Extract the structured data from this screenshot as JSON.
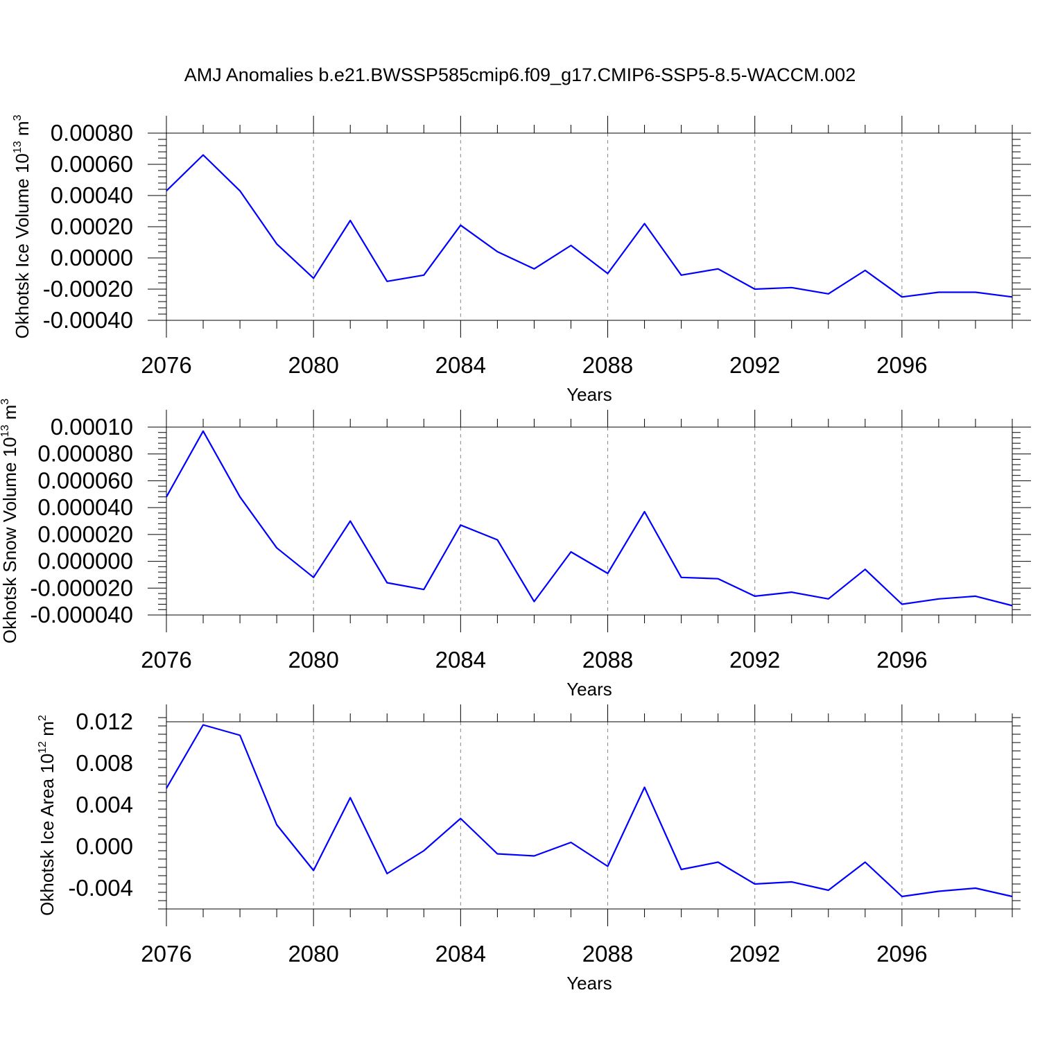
{
  "chart_data": {
    "title": "AMJ Anomalies b.e21.BWSSP585cmip6.f09_g17.CMIP6-SSP5-8.5-WACCM.002",
    "panels": [
      {
        "type": "line",
        "ylabel": "Okhotsk Ice Volume 10",
        "ylabel_exp": "13",
        "ylabel_unit": "m",
        "ylabel_unit_exp": "3",
        "xlabel": "Years",
        "xlim": [
          2076,
          2099
        ],
        "ylim": [
          -0.0004,
          0.0008
        ],
        "yticks": [
          "0.00080",
          "0.00060",
          "0.00040",
          "0.00020",
          "0.00000",
          "-0.00020",
          "-0.00040"
        ],
        "ytick_values": [
          0.0008,
          0.0006,
          0.0004,
          0.0002,
          0.0,
          -0.0002,
          -0.0004
        ],
        "xticks": [
          "2076",
          "2080",
          "2084",
          "2088",
          "2092",
          "2096"
        ],
        "xtick_values": [
          2076,
          2080,
          2084,
          2088,
          2092,
          2096
        ],
        "grid": "x-dashed",
        "series": [
          {
            "color": "#0000ff",
            "x": [
              2076,
              2077,
              2078,
              2079,
              2080,
              2081,
              2082,
              2083,
              2084,
              2085,
              2086,
              2087,
              2088,
              2089,
              2090,
              2091,
              2092,
              2093,
              2094,
              2095,
              2096,
              2097,
              2098,
              2099
            ],
            "values": [
              0.00043,
              0.00066,
              0.00043,
              9e-05,
              -0.00013,
              0.00024,
              -0.00015,
              -0.00011,
              0.00021,
              4e-05,
              -7e-05,
              8e-05,
              -0.0001,
              0.00022,
              -0.00011,
              -7e-05,
              -0.0002,
              -0.00019,
              -0.00023,
              -8e-05,
              -0.00025,
              -0.00022,
              -0.00022,
              -0.00025
            ]
          }
        ]
      },
      {
        "type": "line",
        "ylabel": "Okhotsk Snow Volume 10",
        "ylabel_exp": "13",
        "ylabel_unit": "m",
        "ylabel_unit_exp": "3",
        "xlabel": "Years",
        "xlim": [
          2076,
          2099
        ],
        "ylim": [
          -4e-05,
          0.0001
        ],
        "yticks": [
          "0.00010",
          "0.000080",
          "0.000060",
          "0.000040",
          "0.000020",
          "0.000000",
          "-0.000020",
          "-0.000040"
        ],
        "ytick_values": [
          0.0001,
          8e-05,
          6e-05,
          4e-05,
          2e-05,
          0.0,
          -2e-05,
          -4e-05
        ],
        "xticks": [
          "2076",
          "2080",
          "2084",
          "2088",
          "2092",
          "2096"
        ],
        "xtick_values": [
          2076,
          2080,
          2084,
          2088,
          2092,
          2096
        ],
        "grid": "x-dashed",
        "series": [
          {
            "color": "#0000ff",
            "x": [
              2076,
              2077,
              2078,
              2079,
              2080,
              2081,
              2082,
              2083,
              2084,
              2085,
              2086,
              2087,
              2088,
              2089,
              2090,
              2091,
              2092,
              2093,
              2094,
              2095,
              2096,
              2097,
              2098,
              2099
            ],
            "values": [
              4.8e-05,
              9.7e-05,
              4.8e-05,
              1e-05,
              -1.2e-05,
              3e-05,
              -1.6e-05,
              -2.1e-05,
              2.7e-05,
              1.6e-05,
              -3e-05,
              7e-06,
              -9e-06,
              3.7e-05,
              -1.2e-05,
              -1.3e-05,
              -2.6e-05,
              -2.3e-05,
              -2.8e-05,
              -6e-06,
              -3.2e-05,
              -2.8e-05,
              -2.6e-05,
              -3.3e-05
            ]
          }
        ]
      },
      {
        "type": "line",
        "ylabel": "Okhotsk Ice Area 10",
        "ylabel_exp": "12",
        "ylabel_unit": "m",
        "ylabel_unit_exp": "2",
        "xlabel": "Years",
        "xlim": [
          2076,
          2099
        ],
        "ylim": [
          -0.006,
          0.012
        ],
        "yticks": [
          "0.012",
          "0.008",
          "0.004",
          "0.000",
          "-0.004"
        ],
        "ytick_values": [
          0.012,
          0.008,
          0.004,
          0.0,
          -0.004
        ],
        "xticks": [
          "2076",
          "2080",
          "2084",
          "2088",
          "2092",
          "2096"
        ],
        "xtick_values": [
          2076,
          2080,
          2084,
          2088,
          2092,
          2096
        ],
        "grid": "x-dashed",
        "series": [
          {
            "color": "#0000ff",
            "x": [
              2076,
              2077,
              2078,
              2079,
              2080,
              2081,
              2082,
              2083,
              2084,
              2085,
              2086,
              2087,
              2088,
              2089,
              2090,
              2091,
              2092,
              2093,
              2094,
              2095,
              2096,
              2097,
              2098,
              2099
            ],
            "values": [
              0.0056,
              0.0117,
              0.0107,
              0.0021,
              -0.0023,
              0.0047,
              -0.0026,
              -0.0004,
              0.0027,
              -0.0007,
              -0.0009,
              0.0004,
              -0.0019,
              0.0057,
              -0.0022,
              -0.0015,
              -0.0036,
              -0.0034,
              -0.0042,
              -0.0015,
              -0.0048,
              -0.0043,
              -0.004,
              -0.0048
            ]
          }
        ]
      }
    ]
  }
}
